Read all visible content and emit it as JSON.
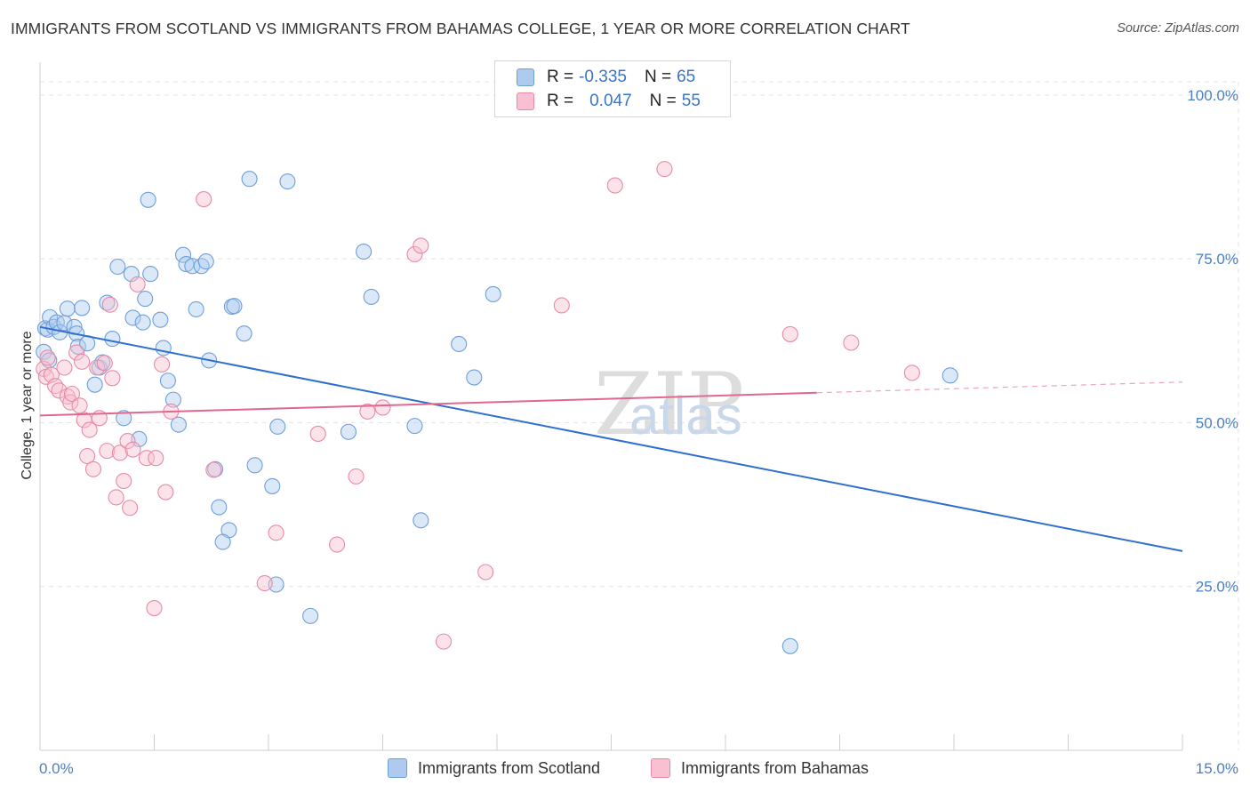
{
  "title": "IMMIGRANTS FROM SCOTLAND VS IMMIGRANTS FROM BAHAMAS COLLEGE, 1 YEAR OR MORE CORRELATION CHART",
  "source": "Source: ZipAtlas.com",
  "legend": {
    "rows": [
      {
        "r_label": "R =",
        "r_value": "-0.335",
        "n_label": "N =",
        "n_value": "65"
      },
      {
        "r_label": "R =",
        "r_value": "0.047",
        "n_label": "N =",
        "n_value": "55"
      }
    ]
  },
  "bottom_legend": [
    "Immigrants from Scotland",
    "Immigrants from Bahamas"
  ],
  "watermark": {
    "part1": "ZIP",
    "part2": "atlas"
  },
  "colors": {
    "scotland_fill": "#aecbef",
    "scotland_stroke": "#6f9fd8",
    "scotland_line": "#2f6fcf",
    "bahamas_fill": "#f8c0d0",
    "bahamas_stroke": "#e88aa6",
    "bahamas_line": "#e06890",
    "tick_text": "#4a7fc4",
    "grid": "#e3e3e3"
  },
  "chart_data": {
    "type": "scatter",
    "title": "IMMIGRANTS FROM SCOTLAND VS IMMIGRANTS FROM BAHAMAS COLLEGE, 1 YEAR OR MORE CORRELATION CHART",
    "xlabel": "",
    "ylabel": "College, 1 year or more",
    "xlim": [
      0,
      15
    ],
    "ylim": [
      0,
      105
    ],
    "x_tick_labels": [
      "0.0%",
      "15.0%"
    ],
    "y_ticks": [
      25,
      50,
      75,
      100
    ],
    "y_tick_labels": [
      "25.0%",
      "50.0%",
      "75.0%",
      "100.0%"
    ],
    "grid": true,
    "legend_position": "top-center",
    "series": [
      {
        "name": "Immigrants from Scotland",
        "stats": {
          "R": -0.335,
          "N": 65
        },
        "trend": {
          "x": [
            0.0,
            15.0
          ],
          "y": [
            64.6,
            30.4
          ],
          "dashed_from": null
        },
        "points": [
          [
            0.05,
            60.8
          ],
          [
            0.07,
            64.4
          ],
          [
            0.1,
            64.2
          ],
          [
            0.12,
            59.5
          ],
          [
            0.13,
            66.1
          ],
          [
            0.18,
            64.6
          ],
          [
            0.22,
            65.3
          ],
          [
            0.26,
            63.8
          ],
          [
            0.32,
            65.2
          ],
          [
            0.36,
            67.4
          ],
          [
            0.45,
            64.6
          ],
          [
            0.48,
            63.6
          ],
          [
            0.5,
            61.6
          ],
          [
            0.55,
            67.5
          ],
          [
            0.62,
            62.1
          ],
          [
            0.72,
            55.8
          ],
          [
            0.78,
            58.4
          ],
          [
            0.82,
            59.2
          ],
          [
            0.88,
            68.3
          ],
          [
            0.95,
            62.8
          ],
          [
            1.02,
            73.8
          ],
          [
            1.1,
            50.7
          ],
          [
            1.2,
            72.7
          ],
          [
            1.22,
            66.0
          ],
          [
            1.3,
            47.5
          ],
          [
            1.35,
            65.3
          ],
          [
            1.38,
            68.9
          ],
          [
            1.42,
            84.0
          ],
          [
            1.45,
            72.7
          ],
          [
            1.58,
            65.7
          ],
          [
            1.62,
            61.4
          ],
          [
            1.68,
            56.4
          ],
          [
            1.75,
            53.5
          ],
          [
            1.82,
            49.7
          ],
          [
            1.88,
            75.6
          ],
          [
            1.92,
            74.2
          ],
          [
            2.0,
            73.9
          ],
          [
            2.05,
            67.3
          ],
          [
            2.12,
            73.9
          ],
          [
            2.18,
            74.6
          ],
          [
            2.22,
            59.5
          ],
          [
            2.3,
            42.9
          ],
          [
            2.35,
            37.1
          ],
          [
            2.48,
            33.6
          ],
          [
            2.4,
            31.8
          ],
          [
            2.52,
            67.7
          ],
          [
            2.55,
            67.8
          ],
          [
            2.68,
            63.6
          ],
          [
            2.75,
            87.2
          ],
          [
            2.82,
            43.5
          ],
          [
            3.05,
            40.3
          ],
          [
            3.1,
            25.3
          ],
          [
            3.12,
            49.4
          ],
          [
            3.25,
            86.8
          ],
          [
            3.55,
            20.5
          ],
          [
            4.05,
            48.6
          ],
          [
            4.25,
            76.1
          ],
          [
            4.35,
            69.2
          ],
          [
            4.92,
            49.5
          ],
          [
            5.0,
            35.1
          ],
          [
            5.5,
            62.0
          ],
          [
            5.7,
            56.9
          ],
          [
            5.95,
            69.6
          ],
          [
            9.85,
            15.9
          ],
          [
            11.95,
            57.2
          ]
        ]
      },
      {
        "name": "Immigrants from Bahamas",
        "stats": {
          "R": 0.047,
          "N": 55
        },
        "trend": {
          "x": [
            0.0,
            15.0
          ],
          "y": [
            51.1,
            56.2
          ],
          "dashed_from": 10.2
        },
        "points": [
          [
            0.05,
            58.2
          ],
          [
            0.08,
            57.0
          ],
          [
            0.1,
            59.9
          ],
          [
            0.15,
            57.3
          ],
          [
            0.2,
            55.6
          ],
          [
            0.25,
            54.9
          ],
          [
            0.32,
            58.4
          ],
          [
            0.36,
            54.0
          ],
          [
            0.4,
            53.1
          ],
          [
            0.42,
            54.4
          ],
          [
            0.48,
            60.7
          ],
          [
            0.52,
            52.6
          ],
          [
            0.55,
            59.3
          ],
          [
            0.58,
            50.4
          ],
          [
            0.62,
            44.9
          ],
          [
            0.65,
            48.9
          ],
          [
            0.7,
            42.9
          ],
          [
            0.75,
            58.4
          ],
          [
            0.78,
            50.7
          ],
          [
            0.85,
            59.1
          ],
          [
            0.88,
            45.7
          ],
          [
            0.92,
            68.0
          ],
          [
            0.95,
            56.8
          ],
          [
            1.0,
            38.6
          ],
          [
            1.05,
            45.4
          ],
          [
            1.1,
            41.1
          ],
          [
            1.15,
            47.2
          ],
          [
            1.18,
            37.0
          ],
          [
            1.22,
            45.9
          ],
          [
            1.28,
            71.1
          ],
          [
            1.4,
            44.6
          ],
          [
            1.5,
            21.7
          ],
          [
            1.52,
            44.6
          ],
          [
            1.6,
            58.9
          ],
          [
            1.65,
            39.4
          ],
          [
            1.72,
            51.7
          ],
          [
            2.15,
            84.1
          ],
          [
            2.28,
            42.8
          ],
          [
            2.95,
            25.5
          ],
          [
            3.1,
            33.2
          ],
          [
            3.65,
            48.3
          ],
          [
            3.9,
            31.4
          ],
          [
            4.15,
            41.8
          ],
          [
            4.3,
            51.7
          ],
          [
            4.5,
            52.3
          ],
          [
            4.92,
            75.7
          ],
          [
            5.0,
            77.0
          ],
          [
            5.3,
            16.6
          ],
          [
            5.85,
            27.2
          ],
          [
            6.85,
            67.9
          ],
          [
            7.55,
            86.2
          ],
          [
            8.2,
            88.7
          ],
          [
            9.85,
            63.5
          ],
          [
            10.65,
            62.2
          ],
          [
            11.45,
            57.6
          ]
        ]
      }
    ]
  }
}
